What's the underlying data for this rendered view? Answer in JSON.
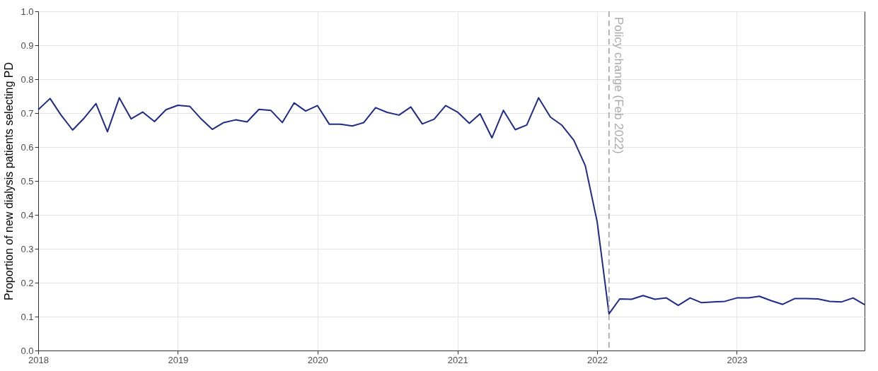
{
  "chart_data": {
    "type": "line",
    "ylabel": "Proportion of new dialysis patients selecting PD",
    "x": [
      "2018-01",
      "2018-02",
      "2018-03",
      "2018-04",
      "2018-05",
      "2018-06",
      "2018-07",
      "2018-08",
      "2018-09",
      "2018-10",
      "2018-11",
      "2018-12",
      "2019-01",
      "2019-02",
      "2019-03",
      "2019-04",
      "2019-05",
      "2019-06",
      "2019-07",
      "2019-08",
      "2019-09",
      "2019-10",
      "2019-11",
      "2019-12",
      "2020-01",
      "2020-02",
      "2020-03",
      "2020-04",
      "2020-05",
      "2020-06",
      "2020-07",
      "2020-08",
      "2020-09",
      "2020-10",
      "2020-11",
      "2020-12",
      "2021-01",
      "2021-02",
      "2021-03",
      "2021-04",
      "2021-05",
      "2021-06",
      "2021-07",
      "2021-08",
      "2021-09",
      "2021-10",
      "2021-11",
      "2021-12",
      "2022-01",
      "2022-02",
      "2022-03",
      "2022-04",
      "2022-05",
      "2022-06",
      "2022-07",
      "2022-08",
      "2022-09",
      "2022-10",
      "2022-11",
      "2022-12",
      "2023-01",
      "2023-02",
      "2023-03",
      "2023-04",
      "2023-05",
      "2023-06",
      "2023-07",
      "2023-08",
      "2023-09",
      "2023-10",
      "2023-11",
      "2023-12"
    ],
    "series": [
      {
        "color": "#1f2a8a",
        "values": [
          0.71,
          0.743,
          0.695,
          0.65,
          0.685,
          0.728,
          0.645,
          0.745,
          0.683,
          0.703,
          0.675,
          0.71,
          0.723,
          0.72,
          0.685,
          0.652,
          0.672,
          0.68,
          0.674,
          0.711,
          0.708,
          0.672,
          0.73,
          0.706,
          0.722,
          0.667,
          0.667,
          0.662,
          0.672,
          0.716,
          0.702,
          0.694,
          0.718,
          0.668,
          0.682,
          0.722,
          0.703,
          0.67,
          0.698,
          0.627,
          0.708,
          0.651,
          0.665,
          0.745,
          0.688,
          0.664,
          0.62,
          0.545,
          0.38,
          0.108,
          0.152,
          0.151,
          0.162,
          0.151,
          0.155,
          0.133,
          0.155,
          0.141,
          0.143,
          0.145,
          0.155,
          0.155,
          0.16,
          0.147,
          0.136,
          0.153,
          0.153,
          0.152,
          0.145,
          0.143,
          0.155,
          0.135
        ]
      }
    ],
    "xlim": [
      "2018-01",
      "2023-12"
    ],
    "xticks": [
      "2018",
      "2019",
      "2020",
      "2021",
      "2022",
      "2023"
    ],
    "ylim": [
      0,
      1
    ],
    "yticks": [
      {
        "value": 0,
        "label": "0.0"
      },
      0.1,
      0.2,
      0.3,
      0.4,
      0.5,
      0.6,
      0.7,
      0.8,
      0.9,
      {
        "value": 1,
        "label": "1.0"
      }
    ],
    "ref_lines": [
      {
        "axis": "x",
        "value": "2022-02",
        "label": "Policy change (Feb 2022)",
        "color": "#aaaaaa",
        "line_style": "dashed"
      }
    ],
    "grid": true,
    "line_style": "solid"
  }
}
